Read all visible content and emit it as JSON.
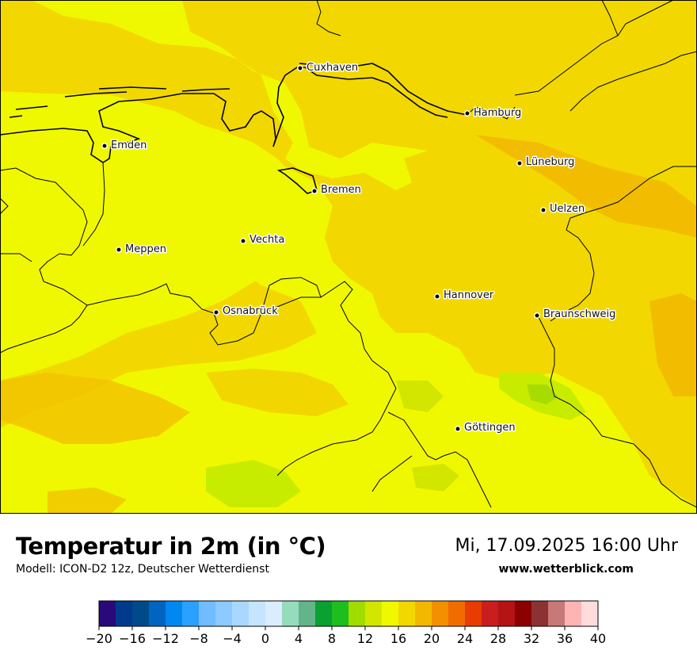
{
  "map": {
    "cities": [
      {
        "name": "Cuxhaven"
      },
      {
        "name": "Hamburg"
      },
      {
        "name": "Emden"
      },
      {
        "name": "Lüneburg"
      },
      {
        "name": "Bremen"
      },
      {
        "name": "Uelzen"
      },
      {
        "name": "Vechta"
      },
      {
        "name": "Meppen"
      },
      {
        "name": "Hannover"
      },
      {
        "name": "Osnabrück"
      },
      {
        "name": "Braunschweig"
      },
      {
        "name": "Göttingen"
      }
    ]
  },
  "footer": {
    "title": "Temperatur in 2m (in °C)",
    "model": "Modell: ICON-D2 12z, Deutscher Wetterdienst",
    "valid_time": "Mi, 17.09.2025 16:00 Uhr",
    "website": "www.wetterblick.com"
  },
  "legend": {
    "ticks": [
      "−20",
      "−16",
      "−12",
      "−8",
      "−4",
      "0",
      "4",
      "8",
      "12",
      "16",
      "20",
      "24",
      "28",
      "32",
      "36",
      "40"
    ],
    "colors": [
      "#2a0a7a",
      "#003a8c",
      "#004a8a",
      "#0064c0",
      "#0088f0",
      "#2aa0ff",
      "#70bcff",
      "#8ccaff",
      "#a8d8ff",
      "#c4e4ff",
      "#dcecff",
      "#96dcbc",
      "#64b48a",
      "#0aa032",
      "#1ebe1e",
      "#a0dc00",
      "#d2e600",
      "#f0f800",
      "#f2d800",
      "#f2b800",
      "#f29000",
      "#f06c00",
      "#e83c00",
      "#c81e1e",
      "#b41414",
      "#8c0000",
      "#8c3232",
      "#c87878",
      "#ffb4b4",
      "#ffdcdc"
    ]
  }
}
